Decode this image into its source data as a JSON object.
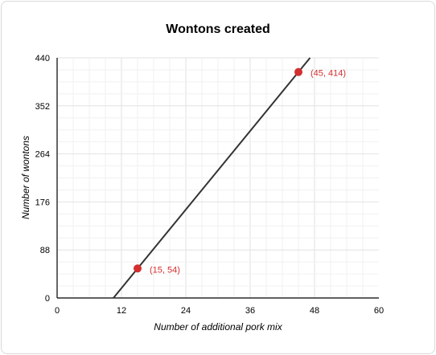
{
  "chart_data": {
    "type": "line",
    "title": "Wontons created",
    "xlabel": "Number of additional pork mix",
    "ylabel": "Number of wontons",
    "xlim": [
      0,
      60
    ],
    "ylim": [
      0,
      440
    ],
    "xticks": [
      0,
      12,
      24,
      36,
      48,
      60
    ],
    "yticks": [
      0,
      88,
      176,
      264,
      352,
      440
    ],
    "grid": true,
    "line": {
      "slope": 12,
      "intercept": -126,
      "color": "#333333"
    },
    "points": [
      {
        "x": 15,
        "y": 54,
        "label": "(15, 54)"
      },
      {
        "x": 45,
        "y": 414,
        "label": "(45, 414)"
      }
    ],
    "point_color": "#d32f2f"
  }
}
